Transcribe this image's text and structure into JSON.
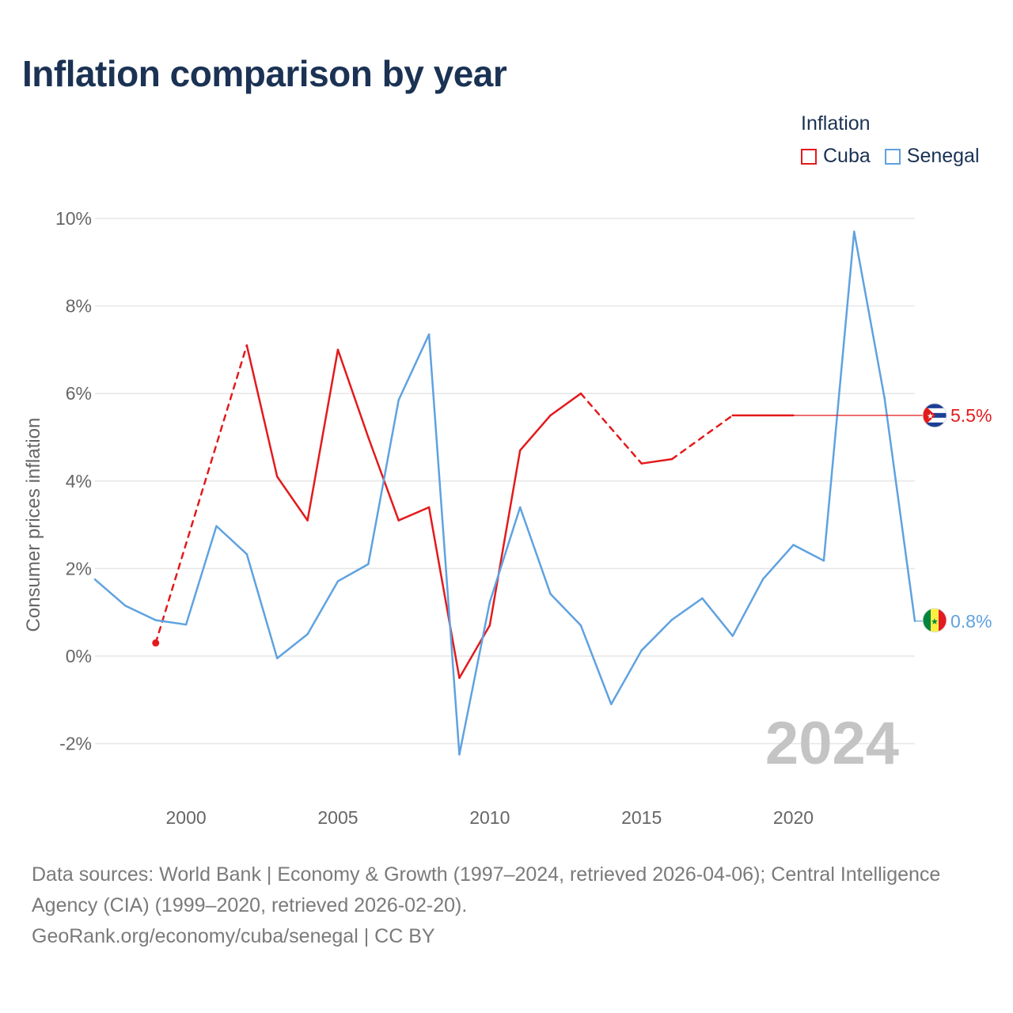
{
  "title": "Inflation comparison by year",
  "legend": {
    "title": "Inflation",
    "items": [
      {
        "label": "Cuba",
        "color": "#e31a1c"
      },
      {
        "label": "Senegal",
        "color": "#5fa2e0"
      }
    ]
  },
  "chart_data": {
    "type": "line",
    "title": "Inflation comparison by year",
    "xlabel": "",
    "ylabel": "Consumer prices inflation",
    "xlim": [
      1997,
      2024
    ],
    "ylim": [
      -3,
      10
    ],
    "y_ticks": [
      -2,
      0,
      2,
      4,
      6,
      8,
      10
    ],
    "y_tick_labels": [
      "-2%",
      "0%",
      "2%",
      "4%",
      "6%",
      "8%",
      "10%"
    ],
    "x_ticks": [
      2000,
      2005,
      2010,
      2015,
      2020
    ],
    "x_tick_labels": [
      "2000",
      "2005",
      "2010",
      "2015",
      "2020"
    ],
    "grid": true,
    "legend_position": "top-right",
    "year_watermark": "2024",
    "series": [
      {
        "name": "Cuba",
        "color": "#e31a1c",
        "end_label": "5.5%",
        "end_value": 5.5,
        "points": [
          [
            1999,
            0.3
          ],
          [
            2002,
            7.1
          ],
          [
            2003,
            4.1
          ],
          [
            2004,
            3.1
          ],
          [
            2005,
            7.0
          ],
          [
            2006,
            5.0
          ],
          [
            2007,
            3.1
          ],
          [
            2008,
            3.4
          ],
          [
            2009,
            -0.5
          ],
          [
            2010,
            0.7
          ],
          [
            2011,
            4.7
          ],
          [
            2012,
            5.5
          ],
          [
            2013,
            6.0
          ],
          [
            2015,
            4.4
          ],
          [
            2016,
            4.5
          ],
          [
            2018,
            5.5
          ],
          [
            2019,
            5.5
          ],
          [
            2020,
            5.5
          ]
        ],
        "dashed_segments": [
          [
            1999,
            2002
          ],
          [
            2013,
            2015
          ],
          [
            2016,
            2018
          ]
        ]
      },
      {
        "name": "Senegal",
        "color": "#5fa2e0",
        "end_label": "0.8%",
        "end_value": 0.8,
        "points": [
          [
            1997,
            1.75
          ],
          [
            1998,
            1.15
          ],
          [
            1999,
            0.82
          ],
          [
            2000,
            0.72
          ],
          [
            2001,
            2.97
          ],
          [
            2002,
            2.33
          ],
          [
            2003,
            -0.05
          ],
          [
            2004,
            0.5
          ],
          [
            2005,
            1.71
          ],
          [
            2006,
            2.1
          ],
          [
            2007,
            5.85
          ],
          [
            2008,
            7.35
          ],
          [
            2009,
            -2.25
          ],
          [
            2010,
            1.23
          ],
          [
            2011,
            3.4
          ],
          [
            2012,
            1.42
          ],
          [
            2013,
            0.7
          ],
          [
            2014,
            -1.1
          ],
          [
            2015,
            0.13
          ],
          [
            2016,
            0.83
          ],
          [
            2017,
            1.32
          ],
          [
            2018,
            0.46
          ],
          [
            2019,
            1.76
          ],
          [
            2020,
            2.54
          ],
          [
            2021,
            2.18
          ],
          [
            2022,
            9.7
          ],
          [
            2023,
            5.9
          ],
          [
            2024,
            0.8
          ]
        ],
        "dashed_segments": []
      }
    ]
  },
  "footer": {
    "sources": "Data sources: World Bank | Economy & Growth (1997–2024, retrieved 2026-04-06); Central Intelligence Agency (CIA) (1999–2020, retrieved 2026-02-20).",
    "credit": "GeoRank.org/economy/cuba/senegal | CC BY"
  }
}
